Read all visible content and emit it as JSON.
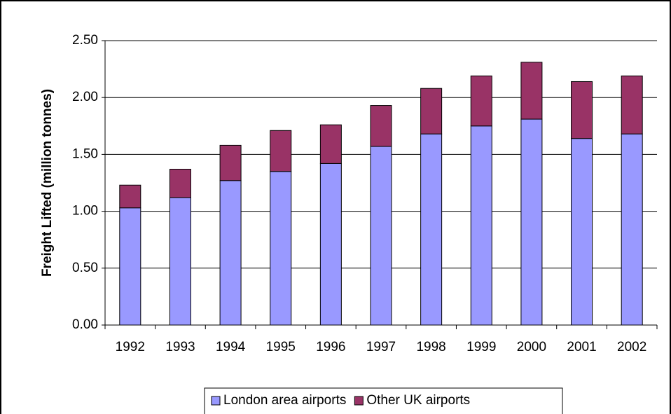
{
  "chart_data": {
    "type": "stacked_bar",
    "y_label": "Freight Lifted (million tonnes)",
    "categories": [
      "1992",
      "1993",
      "1994",
      "1995",
      "1996",
      "1997",
      "1998",
      "1999",
      "2000",
      "2001",
      "2002"
    ],
    "series": [
      {
        "name": "London area airports",
        "color": "#9999ff",
        "values": [
          1.03,
          1.12,
          1.27,
          1.35,
          1.42,
          1.57,
          1.68,
          1.75,
          1.81,
          1.64,
          1.68
        ]
      },
      {
        "name": "Other UK airports",
        "color": "#993366",
        "values": [
          0.2,
          0.25,
          0.31,
          0.36,
          0.34,
          0.36,
          0.4,
          0.44,
          0.5,
          0.5,
          0.51
        ]
      }
    ],
    "ylim": [
      0,
      2.5
    ],
    "yticks": [
      {
        "value": 0,
        "label": "0.00"
      },
      {
        "value": 0.5,
        "label": "0.50"
      },
      {
        "value": 1,
        "label": "1.00"
      },
      {
        "value": 1.5,
        "label": "1.50"
      },
      {
        "value": 2,
        "label": "2.00"
      },
      {
        "value": 2.5,
        "label": "2.50"
      }
    ],
    "grid": true,
    "legend": "bottom"
  }
}
